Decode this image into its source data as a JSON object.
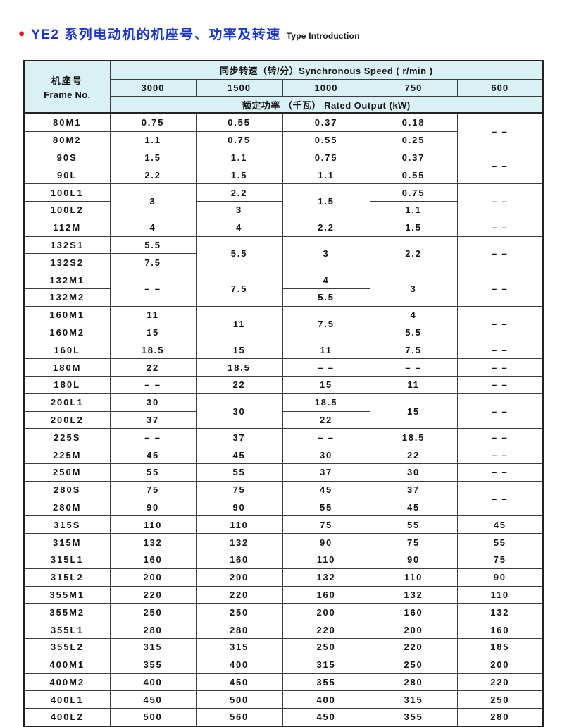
{
  "page": {
    "bullet": "●",
    "title_zh": "YE2 系列电动机的机座号、功率及转速",
    "title_en": "Type Introduction",
    "accent_blue": "#1733d6",
    "accent_red": "#ea1208",
    "header_bg": "#d9f1f5"
  },
  "table": {
    "frame_header_zh": "机座号",
    "frame_header_en": "Frame No.",
    "speed_header": "同步转速（转/分）Synchronous Speed ( r/min )",
    "speed_columns": [
      "3000",
      "1500",
      "1000",
      "750",
      "600"
    ],
    "output_header": "额定功率 （千瓦） Rated Output (kW)",
    "rows": [
      {
        "frame": "80M1",
        "cells": [
          {
            "v": "0.75"
          },
          {
            "v": "0.55"
          },
          {
            "v": "0.37"
          },
          {
            "v": "0.18"
          },
          {
            "v": "– –",
            "rs": 2
          }
        ]
      },
      {
        "frame": "80M2",
        "s": 1,
        "cells": [
          {
            "v": "1.1"
          },
          {
            "v": "0.75"
          },
          {
            "v": "0.55"
          },
          {
            "v": "0.25"
          },
          null
        ]
      },
      {
        "frame": "90S",
        "cells": [
          {
            "v": "1.5"
          },
          {
            "v": "1.1"
          },
          {
            "v": "0.75"
          },
          {
            "v": "0.37"
          },
          {
            "v": "– –",
            "rs": 2
          }
        ]
      },
      {
        "frame": "90L",
        "s": 1,
        "cells": [
          {
            "v": "2.2"
          },
          {
            "v": "1.5"
          },
          {
            "v": "1.1"
          },
          {
            "v": "0.55"
          },
          null
        ]
      },
      {
        "frame": "100L1",
        "cells": [
          {
            "v": "3",
            "rs": 2
          },
          {
            "v": "2.2"
          },
          {
            "v": "1.5",
            "rs": 2
          },
          {
            "v": "0.75"
          },
          {
            "v": "– –",
            "rs": 2
          }
        ]
      },
      {
        "frame": "100L2",
        "s": 1,
        "cells": [
          null,
          {
            "v": "3"
          },
          null,
          {
            "v": "1.1"
          },
          null
        ]
      },
      {
        "frame": "112M",
        "cells": [
          {
            "v": "4"
          },
          {
            "v": "4"
          },
          {
            "v": "2.2"
          },
          {
            "v": "1.5"
          },
          {
            "v": "– –"
          }
        ]
      },
      {
        "frame": "132S1",
        "cells": [
          {
            "v": "5.5"
          },
          {
            "v": "5.5",
            "rs": 2
          },
          {
            "v": "3",
            "rs": 2
          },
          {
            "v": "2.2",
            "rs": 2
          },
          {
            "v": "– –",
            "rs": 2
          }
        ]
      },
      {
        "frame": "132S2",
        "s": 1,
        "cells": [
          {
            "v": "7.5"
          },
          null,
          null,
          null,
          null
        ]
      },
      {
        "frame": "132M1",
        "cells": [
          {
            "v": "– –",
            "rs": 2
          },
          {
            "v": "7.5",
            "rs": 2
          },
          {
            "v": "4"
          },
          {
            "v": "3",
            "rs": 2
          },
          {
            "v": "– –",
            "rs": 2
          }
        ]
      },
      {
        "frame": "132M2",
        "s": 1,
        "cells": [
          null,
          null,
          {
            "v": "5.5"
          },
          null,
          null
        ]
      },
      {
        "frame": "160M1",
        "cells": [
          {
            "v": "11"
          },
          {
            "v": "11",
            "rs": 2
          },
          {
            "v": "7.5",
            "rs": 2
          },
          {
            "v": "4"
          },
          {
            "v": "– –",
            "rs": 2
          }
        ]
      },
      {
        "frame": "160M2",
        "s": 1,
        "cells": [
          {
            "v": "15"
          },
          null,
          null,
          {
            "v": "5.5"
          },
          null
        ]
      },
      {
        "frame": "160L",
        "cells": [
          {
            "v": "18.5"
          },
          {
            "v": "15"
          },
          {
            "v": "11"
          },
          {
            "v": "7.5"
          },
          {
            "v": "– –"
          }
        ]
      },
      {
        "frame": "180M",
        "cells": [
          {
            "v": "22"
          },
          {
            "v": "18.5"
          },
          {
            "v": "– –"
          },
          {
            "v": "– –"
          },
          {
            "v": "– –"
          }
        ]
      },
      {
        "frame": "180L",
        "cells": [
          {
            "v": "– –"
          },
          {
            "v": "22"
          },
          {
            "v": "15"
          },
          {
            "v": "11"
          },
          {
            "v": "– –"
          }
        ]
      },
      {
        "frame": "200L1",
        "cells": [
          {
            "v": "30"
          },
          {
            "v": "30",
            "rs": 2
          },
          {
            "v": "18.5"
          },
          {
            "v": "15",
            "rs": 2
          },
          {
            "v": "– –",
            "rs": 2
          }
        ]
      },
      {
        "frame": "200L2",
        "s": 1,
        "cells": [
          {
            "v": "37"
          },
          null,
          {
            "v": "22"
          },
          null,
          null
        ]
      },
      {
        "frame": "225S",
        "cells": [
          {
            "v": "– –"
          },
          {
            "v": "37"
          },
          {
            "v": "– –"
          },
          {
            "v": "18.5"
          },
          {
            "v": "– –"
          }
        ]
      },
      {
        "frame": "225M",
        "cells": [
          {
            "v": "45"
          },
          {
            "v": "45"
          },
          {
            "v": "30"
          },
          {
            "v": "22"
          },
          {
            "v": "– –"
          }
        ]
      },
      {
        "frame": "250M",
        "cells": [
          {
            "v": "55"
          },
          {
            "v": "55"
          },
          {
            "v": "37"
          },
          {
            "v": "30"
          },
          {
            "v": "– –"
          }
        ]
      },
      {
        "frame": "280S",
        "cells": [
          {
            "v": "75"
          },
          {
            "v": "75"
          },
          {
            "v": "45"
          },
          {
            "v": "37"
          },
          {
            "v": "– –",
            "rs": 2
          }
        ]
      },
      {
        "frame": "280M",
        "s": 1,
        "cells": [
          {
            "v": "90"
          },
          {
            "v": "90"
          },
          {
            "v": "55"
          },
          {
            "v": "45"
          },
          null
        ]
      },
      {
        "frame": "315S",
        "cells": [
          {
            "v": "110"
          },
          {
            "v": "110"
          },
          {
            "v": "75"
          },
          {
            "v": "55"
          },
          {
            "v": "45"
          }
        ]
      },
      {
        "frame": "315M",
        "cells": [
          {
            "v": "132"
          },
          {
            "v": "132"
          },
          {
            "v": "90"
          },
          {
            "v": "75"
          },
          {
            "v": "55"
          }
        ]
      },
      {
        "frame": "315L1",
        "cells": [
          {
            "v": "160"
          },
          {
            "v": "160"
          },
          {
            "v": "110"
          },
          {
            "v": "90"
          },
          {
            "v": "75"
          }
        ]
      },
      {
        "frame": "315L2",
        "cells": [
          {
            "v": "200"
          },
          {
            "v": "200"
          },
          {
            "v": "132"
          },
          {
            "v": "110"
          },
          {
            "v": "90"
          }
        ]
      },
      {
        "frame": "355M1",
        "cells": [
          {
            "v": "220"
          },
          {
            "v": "220"
          },
          {
            "v": "160"
          },
          {
            "v": "132"
          },
          {
            "v": "110"
          }
        ]
      },
      {
        "frame": "355M2",
        "cells": [
          {
            "v": "250"
          },
          {
            "v": "250"
          },
          {
            "v": "200"
          },
          {
            "v": "160"
          },
          {
            "v": "132"
          }
        ]
      },
      {
        "frame": "355L1",
        "cells": [
          {
            "v": "280"
          },
          {
            "v": "280"
          },
          {
            "v": "220"
          },
          {
            "v": "200"
          },
          {
            "v": "160"
          }
        ]
      },
      {
        "frame": "355L2",
        "cells": [
          {
            "v": "315"
          },
          {
            "v": "315"
          },
          {
            "v": "250"
          },
          {
            "v": "220"
          },
          {
            "v": "185"
          }
        ]
      },
      {
        "frame": "400M1",
        "cells": [
          {
            "v": "355"
          },
          {
            "v": "400"
          },
          {
            "v": "315"
          },
          {
            "v": "250"
          },
          {
            "v": "200"
          }
        ]
      },
      {
        "frame": "400M2",
        "cells": [
          {
            "v": "400"
          },
          {
            "v": "450"
          },
          {
            "v": "355"
          },
          {
            "v": "280"
          },
          {
            "v": "220"
          }
        ]
      },
      {
        "frame": "400L1",
        "cells": [
          {
            "v": "450"
          },
          {
            "v": "500"
          },
          {
            "v": "400"
          },
          {
            "v": "315"
          },
          {
            "v": "250"
          }
        ]
      },
      {
        "frame": "400L2",
        "cells": [
          {
            "v": "500"
          },
          {
            "v": "560"
          },
          {
            "v": "450"
          },
          {
            "v": "355"
          },
          {
            "v": "280"
          }
        ]
      }
    ]
  }
}
